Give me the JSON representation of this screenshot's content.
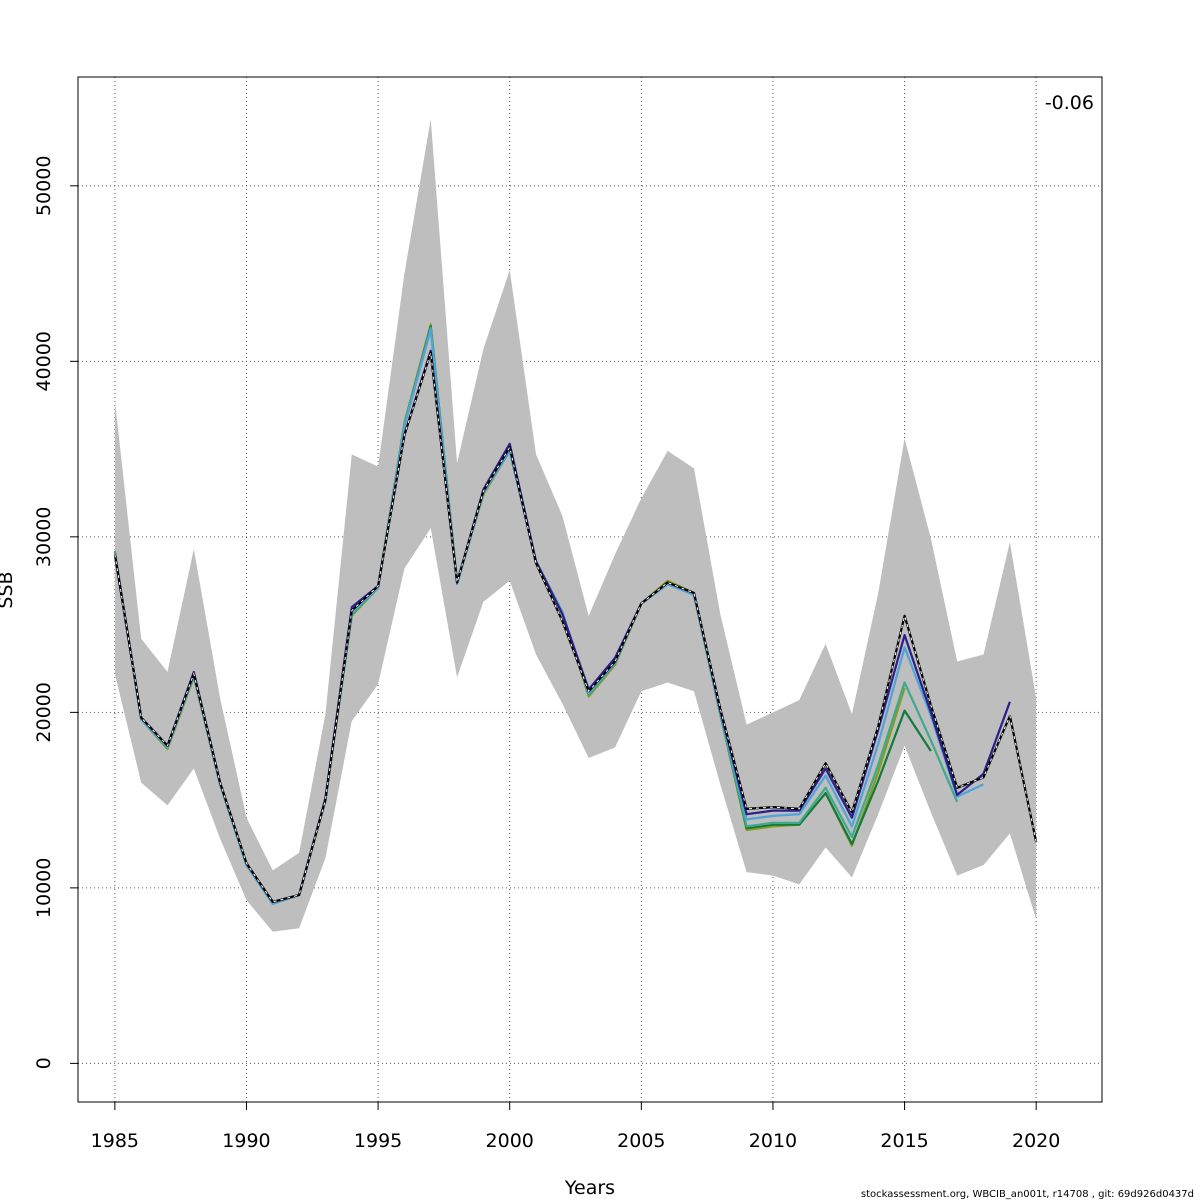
{
  "chart_data": {
    "type": "line",
    "title": "",
    "xlabel": "Years",
    "ylabel": "SSB",
    "xlim": [
      1983.6,
      2022.5
    ],
    "ylim": [
      -2200,
      56200
    ],
    "x_ticks": [
      1985,
      1990,
      1995,
      2000,
      2005,
      2010,
      2015,
      2020
    ],
    "y_ticks": [
      0,
      10000,
      20000,
      30000,
      40000,
      50000
    ],
    "grid": true,
    "annotation": "-0.06",
    "footer": "stockassessment.org, WBCIB_an001t, r14708 , git: 69d926d0437d",
    "colors": {
      "band": "#bebebe",
      "main": "#000000",
      "peel1": "#2b1f8c",
      "peel2": "#4fa3d9",
      "peel3": "#3fa98e",
      "peel4": "#137a3a",
      "peel5": "#8a9a1b"
    },
    "confidence_band": {
      "x": [
        1985,
        1986,
        1987,
        1988,
        1989,
        1990,
        1991,
        1992,
        1993,
        1994,
        1995,
        1996,
        1997,
        1998,
        1999,
        2000,
        2001,
        2002,
        2003,
        2004,
        2005,
        2006,
        2007,
        2008,
        2009,
        2010,
        2011,
        2012,
        2013,
        2014,
        2015,
        2016,
        2017,
        2018,
        2019,
        2020
      ],
      "lower": [
        22200,
        16000,
        14700,
        16800,
        12800,
        9300,
        7500,
        7700,
        11700,
        19500,
        21600,
        28200,
        30500,
        22000,
        26300,
        27500,
        23300,
        20500,
        17400,
        18000,
        21200,
        21700,
        21200,
        15900,
        10900,
        10700,
        10200,
        12300,
        10600,
        14200,
        18100,
        14300,
        10700,
        11300,
        13100,
        8200
      ],
      "upper": [
        37800,
        24200,
        22300,
        29300,
        20800,
        14000,
        11000,
        12000,
        19900,
        34700,
        34000,
        45000,
        53800,
        34200,
        40700,
        45200,
        34700,
        31200,
        25500,
        29000,
        32200,
        34900,
        33900,
        25600,
        19300,
        20000,
        20700,
        23900,
        19900,
        26800,
        35600,
        29900,
        22900,
        23300,
        29700,
        20800
      ]
    },
    "series": [
      {
        "name": "",
        "color_key": "main",
        "dashed": true,
        "x": [
          1985,
          1986,
          1987,
          1988,
          1989,
          1990,
          1991,
          1992,
          1993,
          1994,
          1995,
          1996,
          1997,
          1998,
          1999,
          2000,
          2001,
          2002,
          2003,
          2004,
          2005,
          2006,
          2007,
          2008,
          2009,
          2010,
          2011,
          2012,
          2013,
          2014,
          2015,
          2016,
          2017,
          2018,
          2019,
          2020
        ],
        "y": [
          29000,
          19700,
          18100,
          22200,
          16000,
          11400,
          9200,
          9600,
          15000,
          25800,
          27200,
          35800,
          40500,
          27400,
          32600,
          35100,
          28500,
          25200,
          21200,
          22900,
          26200,
          27400,
          26800,
          20200,
          14500,
          14600,
          14500,
          17100,
          14300,
          19200,
          25500,
          20400,
          15700,
          16300,
          19800,
          12600
        ]
      },
      {
        "name": "",
        "color_key": "peel1",
        "dashed": false,
        "x": [
          1985,
          1986,
          1987,
          1988,
          1989,
          1990,
          1991,
          1992,
          1993,
          1994,
          1995,
          1996,
          1997,
          1998,
          1999,
          2000,
          2001,
          2002,
          2003,
          2004,
          2005,
          2006,
          2007,
          2008,
          2009,
          2010,
          2011,
          2012,
          2013,
          2014,
          2015,
          2016,
          2017,
          2018,
          2019
        ],
        "y": [
          29000,
          19700,
          18100,
          22300,
          16000,
          11400,
          9200,
          9600,
          15100,
          26000,
          27200,
          35800,
          40600,
          27400,
          32700,
          35300,
          28600,
          25600,
          21300,
          23100,
          26200,
          27400,
          26800,
          20100,
          14200,
          14400,
          14400,
          16800,
          14000,
          19000,
          24400,
          20000,
          15300,
          16500,
          20600
        ]
      },
      {
        "name": "",
        "color_key": "peel2",
        "dashed": false,
        "x": [
          1985,
          1986,
          1987,
          1988,
          1989,
          1990,
          1991,
          1992,
          1993,
          1994,
          1995,
          1996,
          1997,
          1998,
          1999,
          2000,
          2001,
          2002,
          2003,
          2004,
          2005,
          2006,
          2007,
          2008,
          2009,
          2010,
          2011,
          2012,
          2013,
          2014,
          2015,
          2016,
          2017,
          2018
        ],
        "y": [
          29100,
          19600,
          18000,
          22100,
          15900,
          11300,
          9100,
          9600,
          15000,
          25700,
          27100,
          36300,
          41800,
          27300,
          32500,
          34900,
          28500,
          25700,
          21100,
          22800,
          26200,
          27300,
          26700,
          20000,
          13900,
          14100,
          14200,
          16400,
          13500,
          18200,
          23700,
          19800,
          15200,
          15900
        ]
      },
      {
        "name": "",
        "color_key": "peel3",
        "dashed": false,
        "x": [
          1985,
          1986,
          1987,
          1988,
          1989,
          1990,
          1991,
          1992,
          1993,
          1994,
          1995,
          1996,
          1997,
          1998,
          1999,
          2000,
          2001,
          2002,
          2003,
          2004,
          2005,
          2006,
          2007,
          2008,
          2009,
          2010,
          2011,
          2012,
          2013,
          2014,
          2015,
          2016,
          2017
        ],
        "y": [
          29100,
          19600,
          18000,
          22100,
          15900,
          11300,
          9100,
          9600,
          15000,
          25600,
          27100,
          36400,
          41900,
          27400,
          32500,
          34900,
          28600,
          25700,
          21000,
          22800,
          26200,
          27300,
          26700,
          19900,
          13500,
          13700,
          13700,
          15700,
          12900,
          17000,
          21700,
          18400,
          14900
        ]
      },
      {
        "name": "",
        "color_key": "peel4",
        "dashed": false,
        "x": [
          1985,
          1986,
          1987,
          1988,
          1989,
          1990,
          1991,
          1992,
          1993,
          1994,
          1995,
          1996,
          1997,
          1998,
          1999,
          2000,
          2001,
          2002,
          2003,
          2004,
          2005,
          2006,
          2007,
          2008,
          2009,
          2010,
          2011,
          2012,
          2013,
          2014,
          2015,
          2016
        ],
        "y": [
          29100,
          19600,
          18000,
          22100,
          15900,
          11300,
          9100,
          9600,
          15000,
          25600,
          27100,
          36400,
          42000,
          27400,
          32500,
          34900,
          28600,
          25700,
          21000,
          22800,
          26200,
          27400,
          26700,
          19900,
          13400,
          13600,
          13600,
          15400,
          12500,
          16100,
          20100,
          17800
        ]
      },
      {
        "name": "",
        "color_key": "peel5",
        "dashed": false,
        "x": [
          1985,
          1986,
          1987,
          1988,
          1989,
          1990,
          1991,
          1992,
          1993,
          1994,
          1995,
          1996,
          1997,
          1998,
          1999,
          2000,
          2001,
          2002,
          2003,
          2004,
          2005,
          2006,
          2007,
          2008,
          2009,
          2010,
          2011,
          2012,
          2013,
          2014,
          2015
        ],
        "y": [
          29200,
          19600,
          17900,
          22000,
          15900,
          11300,
          9100,
          9600,
          15000,
          25500,
          27100,
          36500,
          42100,
          27400,
          32400,
          34900,
          28600,
          25700,
          20900,
          22700,
          26200,
          27500,
          26800,
          19900,
          13300,
          13500,
          13600,
          15400,
          12400,
          16600,
          21400
        ]
      }
    ]
  }
}
